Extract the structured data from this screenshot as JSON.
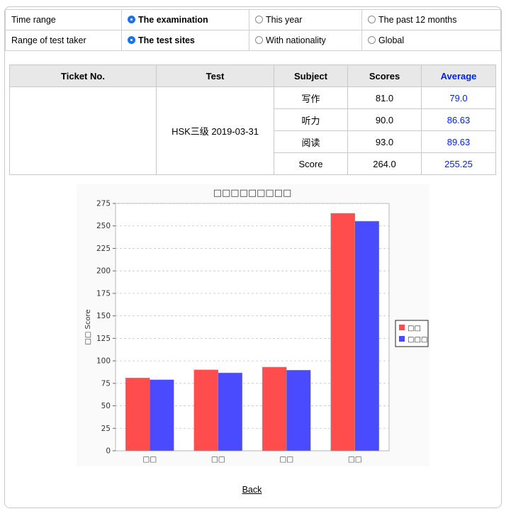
{
  "filters": {
    "time_range": {
      "label": "Time range",
      "options": [
        "The examination",
        "This year",
        "The past 12 months"
      ],
      "selected": 0
    },
    "test_taker_range": {
      "label": "Range of test taker",
      "options": [
        "The test sites",
        "With nationality",
        "Global"
      ],
      "selected": 0
    }
  },
  "score_table": {
    "headers": [
      "Ticket No.",
      "Test",
      "Subject",
      "Scores",
      "Average"
    ],
    "ticket_no": "",
    "test": "HSK三级 2019-03-31",
    "rows": [
      {
        "subject": "写作",
        "score": "81.0",
        "average": "79.0"
      },
      {
        "subject": "听力",
        "score": "90.0",
        "average": "86.63"
      },
      {
        "subject": "阅读",
        "score": "93.0",
        "average": "89.63"
      },
      {
        "subject": "Score",
        "score": "264.0",
        "average": "255.25"
      }
    ]
  },
  "chart_data": {
    "type": "bar",
    "title": "□□□□□□□□□",
    "ylabel": "□□ Score",
    "xlabel": "",
    "categories": [
      "□□",
      "□□",
      "□□",
      "□□"
    ],
    "series": [
      {
        "name": "□□",
        "values": [
          81.0,
          90.0,
          93.0,
          264.0
        ],
        "color": "#ff4d4d"
      },
      {
        "name": "□□□",
        "values": [
          79.0,
          86.63,
          89.63,
          255.25
        ],
        "color": "#4a4aff"
      }
    ],
    "ylim": [
      0,
      275
    ],
    "yticks": [
      "0",
      "25",
      "50",
      "75",
      "100",
      "125",
      "150",
      "175",
      "200",
      "225",
      "250",
      "275"
    ],
    "grid": true,
    "legend_position": "right"
  },
  "back": {
    "label": "Back"
  },
  "colors": {
    "accent": "#0022ee",
    "radio_selected": "#1a73e8",
    "header_bg": "#e8e8e8"
  }
}
